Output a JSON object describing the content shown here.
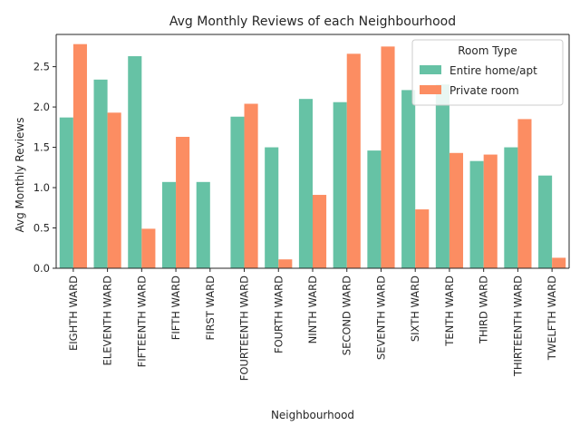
{
  "chart_data": {
    "type": "bar",
    "title": "Avg Monthly Reviews of each Neighbourhood",
    "xlabel": "Neighbourhood",
    "ylabel": "Avg Monthly Reviews",
    "ylim": [
      0,
      2.9
    ],
    "yticks": [
      "0.0",
      "0.5",
      "1.0",
      "1.5",
      "2.0",
      "2.5"
    ],
    "grid": false,
    "legend_position": "top-right",
    "legend_title": "Room Type",
    "categories": [
      "EIGHTH WARD",
      "ELEVENTH WARD",
      "FIFTEENTH WARD",
      "FIFTH WARD",
      "FIRST WARD",
      "FOURTEENTH WARD",
      "FOURTH WARD",
      "NINTH WARD",
      "SECOND WARD",
      "SEVENTH WARD",
      "SIXTH WARD",
      "TENTH WARD",
      "THIRD WARD",
      "THIRTEENTH WARD",
      "TWELFTH WARD"
    ],
    "series": [
      {
        "name": "Entire home/apt",
        "color": "#66c2a5",
        "values": [
          1.87,
          2.34,
          2.63,
          1.07,
          1.07,
          1.88,
          1.5,
          2.1,
          2.06,
          1.46,
          2.21,
          2.28,
          1.33,
          1.5,
          1.15
        ]
      },
      {
        "name": "Private room",
        "color": "#fc8d62",
        "values": [
          2.78,
          1.93,
          0.49,
          1.63,
          null,
          2.04,
          0.11,
          0.91,
          2.66,
          2.75,
          0.73,
          1.43,
          1.41,
          1.85,
          0.13
        ]
      }
    ]
  }
}
